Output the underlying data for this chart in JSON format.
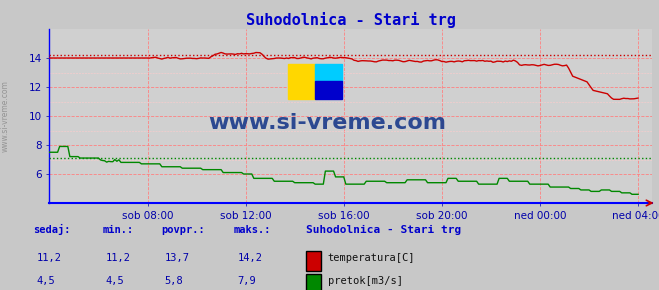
{
  "title": "Suhodolnica - Stari trg",
  "title_color": "#0000cc",
  "bg_color": "#c8c8c8",
  "plot_bg_color": "#d0d0d0",
  "temp_color": "#cc0000",
  "flow_color": "#008800",
  "axis_color": "#0000ff",
  "tick_color": "#0000aa",
  "temp_max_line": 14.2,
  "flow_avg_line": 7.1,
  "xtick_labels": [
    "sob 08:00",
    "sob 12:00",
    "sob 16:00",
    "sob 20:00",
    "ned 00:00",
    "ned 04:00"
  ],
  "xtick_positions": [
    48,
    96,
    144,
    192,
    240,
    288
  ],
  "legend_title": "Suhodolnica - Stari trg",
  "legend_entries": [
    "temperatura[C]",
    "pretok[m3/s]"
  ],
  "legend_colors": [
    "#cc0000",
    "#008800"
  ],
  "stats_headers": [
    "sedaj:",
    "min.:",
    "povpr.:",
    "maks.:"
  ],
  "stats_temp": [
    "11,2",
    "11,2",
    "13,7",
    "14,2"
  ],
  "stats_flow": [
    "4,5",
    "4,5",
    "5,8",
    "7,9"
  ],
  "watermark": "www.si-vreme.com",
  "watermark_color": "#1a3a8a"
}
